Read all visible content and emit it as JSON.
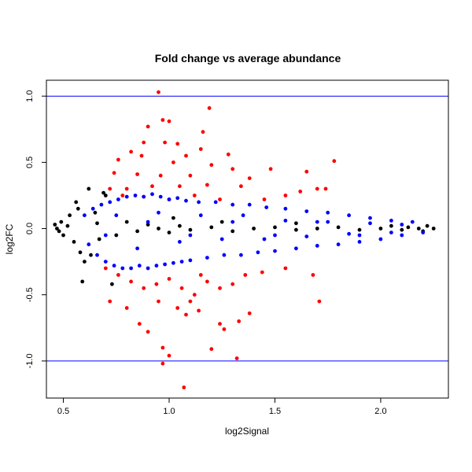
{
  "chart_data": {
    "type": "scatter",
    "title": "Fold change vs average abundance",
    "xlabel": "log2Signal",
    "ylabel": "log2FC",
    "xlim": [
      0.42,
      2.32
    ],
    "ylim": [
      -1.28,
      1.12
    ],
    "xticks": [
      0.5,
      1.0,
      1.5,
      2.0
    ],
    "xtick_labels": [
      "0.5",
      "1.0",
      "1.5",
      "2.0"
    ],
    "yticks": [
      -1.0,
      -0.5,
      0.0,
      0.5,
      1.0
    ],
    "ytick_labels": [
      "-1.0",
      "-0.5",
      "0.0",
      "0.5",
      "1.0"
    ],
    "grid": false,
    "hlines": [
      {
        "y": 1.0,
        "color": "#0000ff"
      },
      {
        "y": -1.0,
        "color": "#0000ff"
      }
    ],
    "series": [
      {
        "color": "#000000",
        "points": [
          [
            0.46,
            0.03
          ],
          [
            0.47,
            0.0
          ],
          [
            0.48,
            -0.02
          ],
          [
            0.49,
            0.05
          ],
          [
            0.5,
            -0.05
          ],
          [
            0.52,
            0.02
          ],
          [
            0.53,
            0.1
          ],
          [
            0.55,
            -0.1
          ],
          [
            0.56,
            0.2
          ],
          [
            0.57,
            0.15
          ],
          [
            0.58,
            -0.18
          ],
          [
            0.6,
            -0.25
          ],
          [
            0.62,
            0.3
          ],
          [
            0.63,
            -0.2
          ],
          [
            0.65,
            0.12
          ],
          [
            0.67,
            -0.08
          ],
          [
            0.7,
            0.25
          ],
          [
            0.75,
            -0.05
          ],
          [
            0.8,
            0.05
          ],
          [
            0.85,
            -0.02
          ],
          [
            0.9,
            0.03
          ],
          [
            0.95,
            0.0
          ],
          [
            1.0,
            -0.03
          ],
          [
            1.05,
            0.02
          ],
          [
            1.1,
            -0.01
          ],
          [
            1.2,
            0.01
          ],
          [
            1.3,
            -0.02
          ],
          [
            1.4,
            0.0
          ],
          [
            1.5,
            0.01
          ],
          [
            1.6,
            -0.01
          ],
          [
            1.7,
            0.0
          ],
          [
            1.8,
            0.01
          ],
          [
            1.9,
            -0.01
          ],
          [
            2.0,
            0.0
          ],
          [
            2.05,
            0.02
          ],
          [
            2.1,
            -0.01
          ],
          [
            2.13,
            0.01
          ],
          [
            2.18,
            0.0
          ],
          [
            2.2,
            -0.02
          ],
          [
            2.22,
            0.02
          ],
          [
            2.25,
            0.0
          ],
          [
            0.59,
            -0.4
          ],
          [
            0.73,
            -0.42
          ],
          [
            0.69,
            0.27
          ],
          [
            1.02,
            0.08
          ],
          [
            1.25,
            0.05
          ],
          [
            1.6,
            0.04
          ],
          [
            0.66,
            0.04
          ]
        ]
      },
      {
        "color": "#ff0000",
        "points": [
          [
            0.95,
            1.03
          ],
          [
            1.19,
            0.91
          ],
          [
            0.97,
            0.82
          ],
          [
            1.0,
            0.81
          ],
          [
            0.9,
            0.77
          ],
          [
            1.16,
            0.73
          ],
          [
            0.88,
            0.65
          ],
          [
            0.98,
            0.65
          ],
          [
            1.04,
            0.64
          ],
          [
            1.15,
            0.6
          ],
          [
            0.82,
            0.58
          ],
          [
            0.87,
            0.55
          ],
          [
            1.08,
            0.55
          ],
          [
            1.28,
            0.56
          ],
          [
            0.76,
            0.52
          ],
          [
            1.02,
            0.5
          ],
          [
            1.2,
            0.48
          ],
          [
            1.3,
            0.45
          ],
          [
            1.48,
            0.45
          ],
          [
            1.65,
            0.43
          ],
          [
            1.78,
            0.51
          ],
          [
            0.74,
            0.42
          ],
          [
            0.85,
            0.41
          ],
          [
            0.96,
            0.4
          ],
          [
            1.1,
            0.4
          ],
          [
            1.38,
            0.38
          ],
          [
            1.7,
            0.3
          ],
          [
            1.74,
            0.3
          ],
          [
            1.62,
            0.28
          ],
          [
            1.55,
            0.25
          ],
          [
            0.72,
            0.3
          ],
          [
            0.8,
            0.3
          ],
          [
            0.92,
            0.32
          ],
          [
            1.05,
            0.32
          ],
          [
            1.18,
            0.33
          ],
          [
            1.34,
            0.32
          ],
          [
            1.45,
            0.22
          ],
          [
            0.78,
            0.25
          ],
          [
            0.88,
            0.24
          ],
          [
            1.0,
            0.22
          ],
          [
            1.12,
            0.25
          ],
          [
            1.24,
            0.22
          ],
          [
            0.7,
            -0.3
          ],
          [
            0.76,
            -0.35
          ],
          [
            0.82,
            -0.4
          ],
          [
            0.88,
            -0.45
          ],
          [
            0.94,
            -0.42
          ],
          [
            1.0,
            -0.38
          ],
          [
            1.06,
            -0.45
          ],
          [
            1.12,
            -0.5
          ],
          [
            1.18,
            -0.4
          ],
          [
            1.24,
            -0.45
          ],
          [
            1.3,
            -0.42
          ],
          [
            1.36,
            -0.35
          ],
          [
            1.44,
            -0.33
          ],
          [
            1.55,
            -0.3
          ],
          [
            1.68,
            -0.35
          ],
          [
            1.71,
            -0.55
          ],
          [
            0.72,
            -0.55
          ],
          [
            0.8,
            -0.6
          ],
          [
            0.86,
            -0.72
          ],
          [
            0.9,
            -0.78
          ],
          [
            1.04,
            -0.6
          ],
          [
            1.08,
            -0.65
          ],
          [
            1.14,
            -0.62
          ],
          [
            1.24,
            -0.72
          ],
          [
            1.26,
            -0.76
          ],
          [
            1.33,
            -0.7
          ],
          [
            1.38,
            -0.64
          ],
          [
            1.2,
            -0.91
          ],
          [
            0.97,
            -0.9
          ],
          [
            1.0,
            -0.96
          ],
          [
            0.97,
            -1.02
          ],
          [
            1.07,
            -1.2
          ],
          [
            1.32,
            -0.98
          ],
          [
            0.95,
            -0.55
          ],
          [
            1.1,
            -0.55
          ],
          [
            1.15,
            -0.35
          ]
        ]
      },
      {
        "color": "#0000ff",
        "points": [
          [
            0.6,
            0.1
          ],
          [
            0.62,
            -0.12
          ],
          [
            0.64,
            0.15
          ],
          [
            0.66,
            -0.2
          ],
          [
            0.68,
            0.18
          ],
          [
            0.7,
            -0.25
          ],
          [
            0.72,
            0.2
          ],
          [
            0.74,
            -0.28
          ],
          [
            0.76,
            0.22
          ],
          [
            0.78,
            -0.3
          ],
          [
            0.8,
            0.24
          ],
          [
            0.82,
            -0.3
          ],
          [
            0.84,
            0.25
          ],
          [
            0.86,
            -0.28
          ],
          [
            0.88,
            0.24
          ],
          [
            0.9,
            -0.3
          ],
          [
            0.92,
            0.26
          ],
          [
            0.94,
            -0.28
          ],
          [
            0.96,
            0.24
          ],
          [
            0.98,
            -0.27
          ],
          [
            1.0,
            0.22
          ],
          [
            1.02,
            -0.26
          ],
          [
            1.04,
            0.23
          ],
          [
            1.06,
            -0.25
          ],
          [
            1.08,
            0.21
          ],
          [
            1.1,
            -0.24
          ],
          [
            1.14,
            0.2
          ],
          [
            1.18,
            -0.22
          ],
          [
            1.22,
            0.2
          ],
          [
            1.26,
            -0.2
          ],
          [
            1.3,
            0.18
          ],
          [
            1.34,
            -0.2
          ],
          [
            1.38,
            0.18
          ],
          [
            1.42,
            -0.18
          ],
          [
            1.46,
            0.16
          ],
          [
            1.5,
            -0.17
          ],
          [
            1.55,
            0.15
          ],
          [
            1.6,
            -0.15
          ],
          [
            1.65,
            0.13
          ],
          [
            1.7,
            -0.13
          ],
          [
            1.75,
            0.12
          ],
          [
            1.8,
            -0.12
          ],
          [
            1.85,
            0.1
          ],
          [
            1.9,
            -0.1
          ],
          [
            1.95,
            0.08
          ],
          [
            2.0,
            -0.08
          ],
          [
            2.05,
            0.06
          ],
          [
            2.1,
            -0.05
          ],
          [
            2.15,
            0.05
          ],
          [
            2.2,
            -0.03
          ],
          [
            0.75,
            0.1
          ],
          [
            0.85,
            -0.15
          ],
          [
            0.95,
            0.12
          ],
          [
            1.05,
            -0.1
          ],
          [
            1.15,
            0.1
          ],
          [
            1.25,
            -0.08
          ],
          [
            1.35,
            0.1
          ],
          [
            1.45,
            -0.08
          ],
          [
            1.55,
            0.06
          ],
          [
            1.65,
            -0.06
          ],
          [
            1.75,
            0.05
          ],
          [
            1.85,
            -0.04
          ],
          [
            1.95,
            0.04
          ],
          [
            2.05,
            -0.03
          ],
          [
            0.7,
            -0.05
          ],
          [
            0.9,
            0.05
          ],
          [
            1.1,
            -0.05
          ],
          [
            1.3,
            0.05
          ],
          [
            1.5,
            -0.05
          ],
          [
            1.7,
            0.05
          ],
          [
            1.9,
            -0.05
          ],
          [
            2.1,
            0.03
          ]
        ]
      }
    ]
  }
}
